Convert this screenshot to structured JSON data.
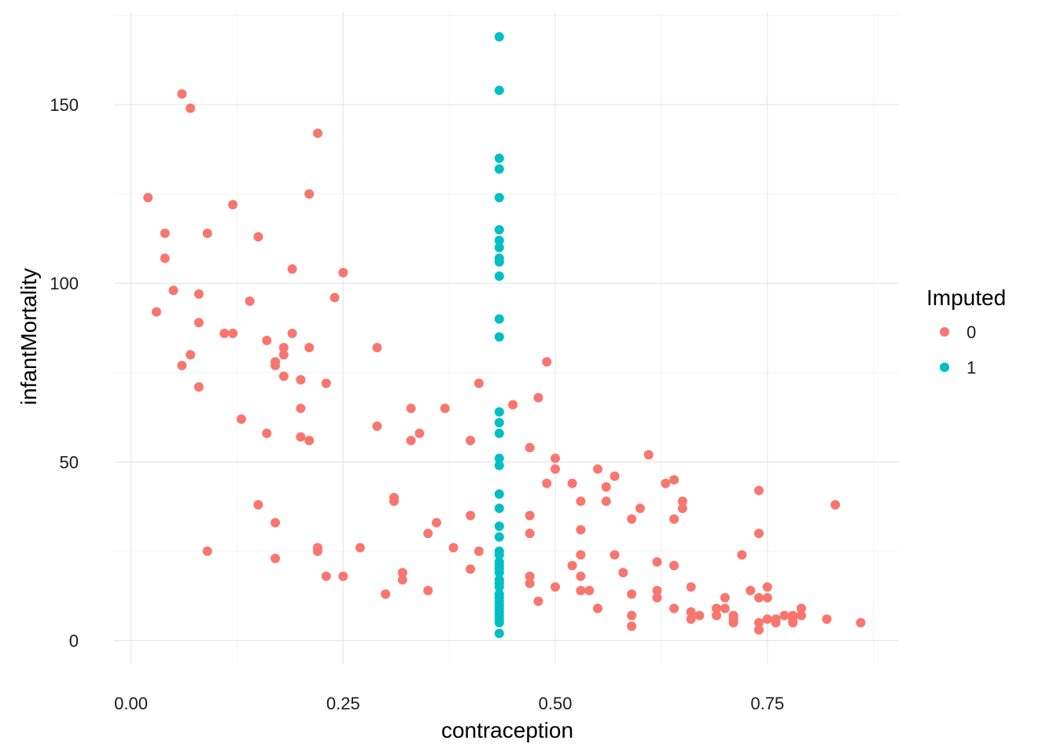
{
  "chart_data": {
    "type": "scatter",
    "title": "",
    "xlabel": "contraception",
    "ylabel": "infantMortality",
    "xlim": [
      -0.02,
      0.905
    ],
    "ylim": [
      -6.5,
      176
    ],
    "x_ticks": [
      {
        "value": 0.0,
        "label": "0.00"
      },
      {
        "value": 0.25,
        "label": "0.25"
      },
      {
        "value": 0.5,
        "label": "0.50"
      },
      {
        "value": 0.75,
        "label": "0.75"
      }
    ],
    "y_ticks": [
      {
        "value": 0,
        "label": "0"
      },
      {
        "value": 50,
        "label": "50"
      },
      {
        "value": 100,
        "label": "100"
      },
      {
        "value": 150,
        "label": "150"
      }
    ],
    "grid": true,
    "legend": {
      "title": "Imputed",
      "position": "right",
      "entries": [
        {
          "label": "0",
          "color": "#F8766D"
        },
        {
          "label": "1",
          "color": "#00BFC4"
        }
      ]
    },
    "series": [
      {
        "name": "0",
        "color": "#F8766D",
        "points": [
          [
            0.06,
            153
          ],
          [
            0.07,
            149
          ],
          [
            0.22,
            142
          ],
          [
            0.02,
            124
          ],
          [
            0.21,
            125
          ],
          [
            0.12,
            122
          ],
          [
            0.04,
            114
          ],
          [
            0.09,
            114
          ],
          [
            0.15,
            113
          ],
          [
            0.04,
            107
          ],
          [
            0.19,
            104
          ],
          [
            0.25,
            103
          ],
          [
            0.05,
            98
          ],
          [
            0.08,
            97
          ],
          [
            0.24,
            96
          ],
          [
            0.14,
            95
          ],
          [
            0.03,
            92
          ],
          [
            0.08,
            89
          ],
          [
            0.11,
            86
          ],
          [
            0.12,
            86
          ],
          [
            0.19,
            86
          ],
          [
            0.16,
            84
          ],
          [
            0.18,
            82
          ],
          [
            0.21,
            82
          ],
          [
            0.29,
            82
          ],
          [
            0.07,
            80
          ],
          [
            0.18,
            80
          ],
          [
            0.17,
            78
          ],
          [
            0.17,
            77
          ],
          [
            0.06,
            77
          ],
          [
            0.18,
            74
          ],
          [
            0.2,
            73
          ],
          [
            0.23,
            72
          ],
          [
            0.08,
            71
          ],
          [
            0.2,
            65
          ],
          [
            0.13,
            62
          ],
          [
            0.29,
            60
          ],
          [
            0.16,
            58
          ],
          [
            0.2,
            57
          ],
          [
            0.21,
            56
          ],
          [
            0.49,
            78
          ],
          [
            0.41,
            72
          ],
          [
            0.48,
            68
          ],
          [
            0.45,
            66
          ],
          [
            0.33,
            65
          ],
          [
            0.37,
            65
          ],
          [
            0.34,
            58
          ],
          [
            0.33,
            56
          ],
          [
            0.4,
            56
          ],
          [
            0.47,
            54
          ],
          [
            0.5,
            51
          ],
          [
            0.5,
            48
          ],
          [
            0.61,
            52
          ],
          [
            0.55,
            48
          ],
          [
            0.57,
            46
          ],
          [
            0.49,
            44
          ],
          [
            0.52,
            44
          ],
          [
            0.64,
            45
          ],
          [
            0.63,
            44
          ],
          [
            0.56,
            43
          ],
          [
            0.74,
            42
          ],
          [
            0.31,
            40
          ],
          [
            0.31,
            39
          ],
          [
            0.53,
            39
          ],
          [
            0.56,
            39
          ],
          [
            0.65,
            39
          ],
          [
            0.15,
            38
          ],
          [
            0.83,
            38
          ],
          [
            0.6,
            37
          ],
          [
            0.65,
            37
          ],
          [
            0.4,
            35
          ],
          [
            0.47,
            35
          ],
          [
            0.59,
            34
          ],
          [
            0.64,
            34
          ],
          [
            0.17,
            33
          ],
          [
            0.36,
            33
          ],
          [
            0.53,
            31
          ],
          [
            0.35,
            30
          ],
          [
            0.47,
            30
          ],
          [
            0.74,
            30
          ],
          [
            0.27,
            26
          ],
          [
            0.38,
            26
          ],
          [
            0.22,
            26
          ],
          [
            0.22,
            25
          ],
          [
            0.41,
            25
          ],
          [
            0.09,
            25
          ],
          [
            0.53,
            24
          ],
          [
            0.57,
            24
          ],
          [
            0.72,
            24
          ],
          [
            0.17,
            23
          ],
          [
            0.62,
            22
          ],
          [
            0.52,
            21
          ],
          [
            0.64,
            21
          ],
          [
            0.4,
            20
          ],
          [
            0.32,
            19
          ],
          [
            0.58,
            19
          ],
          [
            0.23,
            18
          ],
          [
            0.25,
            18
          ],
          [
            0.47,
            18
          ],
          [
            0.53,
            18
          ],
          [
            0.32,
            17
          ],
          [
            0.47,
            16
          ],
          [
            0.5,
            15
          ],
          [
            0.66,
            15
          ],
          [
            0.75,
            15
          ],
          [
            0.35,
            14
          ],
          [
            0.53,
            14
          ],
          [
            0.54,
            14
          ],
          [
            0.62,
            14
          ],
          [
            0.73,
            14
          ],
          [
            0.3,
            13
          ],
          [
            0.59,
            13
          ],
          [
            0.62,
            12
          ],
          [
            0.7,
            12
          ],
          [
            0.74,
            12
          ],
          [
            0.75,
            12
          ],
          [
            0.48,
            11
          ],
          [
            0.55,
            9
          ],
          [
            0.64,
            9
          ],
          [
            0.69,
            9
          ],
          [
            0.7,
            9
          ],
          [
            0.79,
            9
          ],
          [
            0.66,
            8
          ],
          [
            0.59,
            7
          ],
          [
            0.67,
            7
          ],
          [
            0.69,
            7
          ],
          [
            0.71,
            7
          ],
          [
            0.77,
            7
          ],
          [
            0.78,
            7
          ],
          [
            0.79,
            7
          ],
          [
            0.66,
            6
          ],
          [
            0.71,
            6
          ],
          [
            0.75,
            6
          ],
          [
            0.76,
            6
          ],
          [
            0.78,
            6
          ],
          [
            0.82,
            6
          ],
          [
            0.71,
            5
          ],
          [
            0.74,
            5
          ],
          [
            0.76,
            5
          ],
          [
            0.78,
            5
          ],
          [
            0.86,
            5
          ],
          [
            0.59,
            4
          ],
          [
            0.74,
            3
          ]
        ]
      },
      {
        "name": "1",
        "color": "#00BFC4",
        "points": [
          [
            0.434,
            169
          ],
          [
            0.434,
            154
          ],
          [
            0.434,
            135
          ],
          [
            0.434,
            132
          ],
          [
            0.434,
            124
          ],
          [
            0.434,
            115
          ],
          [
            0.434,
            112
          ],
          [
            0.434,
            110
          ],
          [
            0.434,
            107
          ],
          [
            0.434,
            106
          ],
          [
            0.434,
            102
          ],
          [
            0.434,
            90
          ],
          [
            0.434,
            85
          ],
          [
            0.434,
            64
          ],
          [
            0.434,
            61
          ],
          [
            0.434,
            58
          ],
          [
            0.434,
            51
          ],
          [
            0.434,
            49
          ],
          [
            0.434,
            41
          ],
          [
            0.434,
            37
          ],
          [
            0.434,
            32
          ],
          [
            0.434,
            29
          ],
          [
            0.434,
            25
          ],
          [
            0.434,
            24
          ],
          [
            0.434,
            22
          ],
          [
            0.434,
            21
          ],
          [
            0.434,
            20
          ],
          [
            0.434,
            19
          ],
          [
            0.434,
            17
          ],
          [
            0.434,
            16
          ],
          [
            0.434,
            15
          ],
          [
            0.434,
            13
          ],
          [
            0.434,
            12
          ],
          [
            0.434,
            11
          ],
          [
            0.434,
            10
          ],
          [
            0.434,
            9
          ],
          [
            0.434,
            8
          ],
          [
            0.434,
            7
          ],
          [
            0.434,
            6
          ],
          [
            0.434,
            5
          ],
          [
            0.434,
            2
          ]
        ]
      }
    ]
  }
}
